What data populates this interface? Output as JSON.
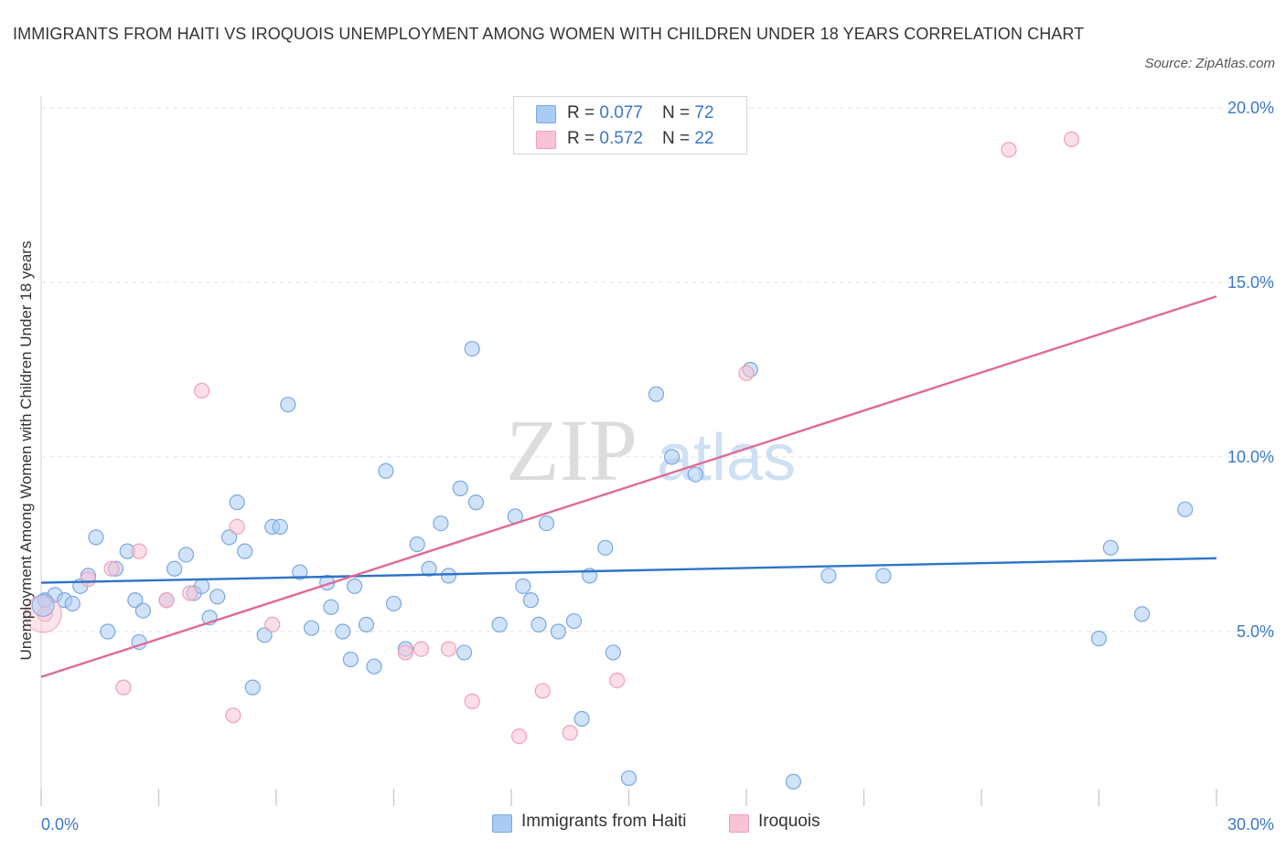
{
  "header": {
    "title": "IMMIGRANTS FROM HAITI VS IROQUOIS UNEMPLOYMENT AMONG WOMEN WITH CHILDREN UNDER 18 YEARS CORRELATION CHART",
    "source": "Source: ZipAtlas.com"
  },
  "watermark": {
    "zip": "ZIP",
    "atlas": "atlas"
  },
  "legend_top": {
    "rows": [
      {
        "r_label": "R = ",
        "r_value": "0.077",
        "n_label": "N = ",
        "n_value": "72"
      },
      {
        "r_label": "R = ",
        "r_value": "0.572",
        "n_label": "N = ",
        "n_value": "22"
      }
    ]
  },
  "legend_bottom": {
    "items": [
      {
        "label": "Immigrants from Haiti"
      },
      {
        "label": "Iroquois"
      }
    ]
  },
  "colors": {
    "haiti_fill": "#aaccf4",
    "haiti_stroke": "#7aa8e0",
    "haiti_line": "#2e73c8",
    "iroquois_fill": "#f9c3d3",
    "iroquois_stroke": "#eea0b8",
    "iroquois_line": "#e06a95",
    "grid": "#e3e3e3",
    "axis_text": "#3b78c9"
  },
  "chart_data": {
    "type": "scatter",
    "title": "IMMIGRANTS FROM HAITI VS IROQUOIS UNEMPLOYMENT AMONG WOMEN WITH CHILDREN UNDER 18 YEARS CORRELATION CHART",
    "xlabel": "",
    "ylabel": "Unemployment Among Women with Children Under 18 years",
    "xlim": [
      0,
      30
    ],
    "ylim": [
      0,
      20
    ],
    "x_tick_labels": [
      "0.0%",
      "30.0%"
    ],
    "y_ticks": [
      5,
      10,
      15,
      20
    ],
    "y_tick_labels": [
      "5.0%",
      "10.0%",
      "15.0%",
      "20.0%"
    ],
    "grid": true,
    "legend_position": "top-center",
    "series": [
      {
        "name": "Immigrants from Haiti",
        "R": 0.077,
        "N": 72,
        "trend": {
          "x": [
            0,
            30
          ],
          "y": [
            6.4,
            7.1
          ]
        },
        "points": [
          [
            0.1,
            5.9
          ],
          [
            0.35,
            6.05
          ],
          [
            0.6,
            5.9
          ],
          [
            0.8,
            5.8
          ],
          [
            1.0,
            6.3
          ],
          [
            1.2,
            6.6
          ],
          [
            1.4,
            7.7
          ],
          [
            1.9,
            6.8
          ],
          [
            2.2,
            7.3
          ],
          [
            1.7,
            5.0
          ],
          [
            2.4,
            5.9
          ],
          [
            2.6,
            5.6
          ],
          [
            2.5,
            4.7
          ],
          [
            3.2,
            5.9
          ],
          [
            3.4,
            6.8
          ],
          [
            3.7,
            7.2
          ],
          [
            3.9,
            6.1
          ],
          [
            4.1,
            6.3
          ],
          [
            4.3,
            5.4
          ],
          [
            4.5,
            6.0
          ],
          [
            4.8,
            7.7
          ],
          [
            5.0,
            8.7
          ],
          [
            5.2,
            7.3
          ],
          [
            5.4,
            3.4
          ],
          [
            5.7,
            4.9
          ],
          [
            5.9,
            8.0
          ],
          [
            6.1,
            8.0
          ],
          [
            6.3,
            11.5
          ],
          [
            6.6,
            6.7
          ],
          [
            6.9,
            5.1
          ],
          [
            7.3,
            6.4
          ],
          [
            7.4,
            5.7
          ],
          [
            7.7,
            5.0
          ],
          [
            7.9,
            4.2
          ],
          [
            8.0,
            6.3
          ],
          [
            8.3,
            5.2
          ],
          [
            8.5,
            4.0
          ],
          [
            8.8,
            9.6
          ],
          [
            9.0,
            5.8
          ],
          [
            9.3,
            4.5
          ],
          [
            9.6,
            7.5
          ],
          [
            9.9,
            6.8
          ],
          [
            10.2,
            8.1
          ],
          [
            10.4,
            6.6
          ],
          [
            10.7,
            9.1
          ],
          [
            10.8,
            4.4
          ],
          [
            11.0,
            13.1
          ],
          [
            11.1,
            8.7
          ],
          [
            11.7,
            5.2
          ],
          [
            12.1,
            8.3
          ],
          [
            12.3,
            6.3
          ],
          [
            12.5,
            5.9
          ],
          [
            12.7,
            5.2
          ],
          [
            12.9,
            8.1
          ],
          [
            13.2,
            5.0
          ],
          [
            13.6,
            5.3
          ],
          [
            13.8,
            2.5
          ],
          [
            14.0,
            6.6
          ],
          [
            14.4,
            7.4
          ],
          [
            14.6,
            4.4
          ],
          [
            15.0,
            0.8
          ],
          [
            15.7,
            11.8
          ],
          [
            16.1,
            10.0
          ],
          [
            16.7,
            9.5
          ],
          [
            18.1,
            12.5
          ],
          [
            19.2,
            0.7
          ],
          [
            20.1,
            6.6
          ],
          [
            21.5,
            6.6
          ],
          [
            27.0,
            4.8
          ],
          [
            27.3,
            7.4
          ],
          [
            28.1,
            5.5
          ],
          [
            29.2,
            8.5
          ]
        ]
      },
      {
        "name": "Iroquois",
        "R": 0.572,
        "N": 22,
        "trend": {
          "x": [
            0,
            30
          ],
          "y": [
            3.7,
            14.6
          ]
        },
        "points": [
          [
            0.1,
            5.5
          ],
          [
            1.2,
            6.5
          ],
          [
            1.8,
            6.8
          ],
          [
            2.1,
            3.4
          ],
          [
            2.5,
            7.3
          ],
          [
            3.2,
            5.9
          ],
          [
            3.8,
            6.1
          ],
          [
            4.1,
            11.9
          ],
          [
            4.9,
            2.6
          ],
          [
            5.0,
            8.0
          ],
          [
            5.9,
            5.2
          ],
          [
            9.3,
            4.4
          ],
          [
            9.7,
            4.5
          ],
          [
            10.4,
            4.5
          ],
          [
            11.0,
            3.0
          ],
          [
            12.2,
            2.0
          ],
          [
            12.8,
            3.3
          ],
          [
            13.5,
            2.1
          ],
          [
            14.7,
            3.6
          ],
          [
            18.0,
            12.4
          ],
          [
            24.7,
            18.8
          ],
          [
            26.3,
            19.1
          ]
        ]
      }
    ]
  }
}
